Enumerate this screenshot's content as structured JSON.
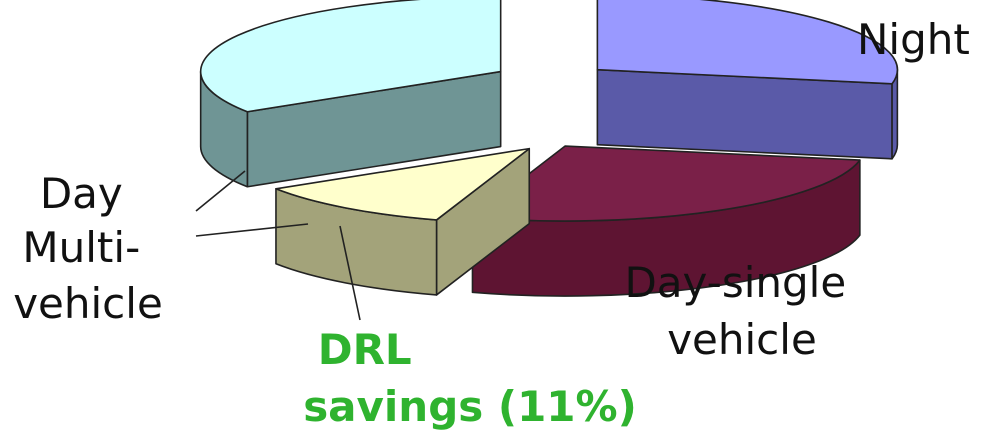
{
  "chart_data": {
    "type": "pie",
    "style": "3d-exploded",
    "slices": [
      {
        "key": "night",
        "label_lines": [
          "Night"
        ],
        "value": 28,
        "top_color": "#9999ff",
        "side_color": "#5a5aa8",
        "label_color": "#111111"
      },
      {
        "key": "day_single",
        "label_lines": [
          "Day-single",
          "vehicle"
        ],
        "value": 27,
        "top_color": "#7a2048",
        "side_color": "#5e1432",
        "label_color": "#111111"
      },
      {
        "key": "drl",
        "label_lines": [
          "DRL",
          "savings (11%)"
        ],
        "value": 11,
        "top_color": "#ffffcc",
        "side_color": "#a3a37a",
        "label_color": "#2fb32f"
      },
      {
        "key": "day_multi",
        "label_lines": [
          "Day",
          "Multi-",
          "vehicle"
        ],
        "value": 34,
        "top_color": "#ccffff",
        "side_color": "#6f9595",
        "label_color": "#111111"
      }
    ],
    "legend": "none"
  }
}
